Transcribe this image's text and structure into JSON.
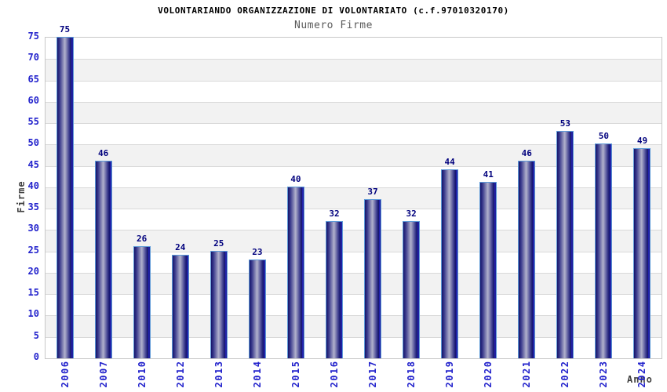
{
  "title": "VOLONTARIANDO ORGANIZZAZIONE DI VOLONTARIATO (c.f.97010320170)",
  "subtitle": "Numero Firme",
  "chart_data": {
    "type": "bar",
    "title": "VOLONTARIANDO ORGANIZZAZIONE DI VOLONTARIATO (c.f.97010320170)",
    "subtitle": "Numero Firme",
    "xlabel": "Anno",
    "ylabel": "Firme",
    "categories": [
      "2006",
      "2007",
      "2010",
      "2012",
      "2013",
      "2014",
      "2015",
      "2016",
      "2017",
      "2018",
      "2019",
      "2020",
      "2021",
      "2022",
      "2023",
      "2024"
    ],
    "values": [
      75,
      46,
      26,
      24,
      25,
      23,
      40,
      32,
      37,
      32,
      44,
      41,
      46,
      53,
      50,
      49
    ],
    "ylim": [
      0,
      75
    ],
    "ytick_step": 5,
    "yticks": [
      0,
      5,
      10,
      15,
      20,
      25,
      30,
      35,
      40,
      45,
      50,
      55,
      60,
      65,
      70,
      75
    ],
    "grid": true,
    "alternating_bands": true,
    "legend": "none",
    "bar_value_labels_shown": true
  },
  "colors": {
    "title": "#000000",
    "subtitle": "#5a5a5a",
    "tick_label": "#2222cc",
    "value_label": "#00007d",
    "axis_title": "#404040",
    "bar_border": "#5e9ad8",
    "bar_dark": "#14146a",
    "bar_shade": "#3c3c8e",
    "bar_mid": "#b2b2cc",
    "bar_edge_highlight": "#2a2ad2",
    "band": "#f2f2f2",
    "grid_line": "#d9d9d9",
    "plot_border": "#c8c8c8",
    "background": "#ffffff"
  }
}
